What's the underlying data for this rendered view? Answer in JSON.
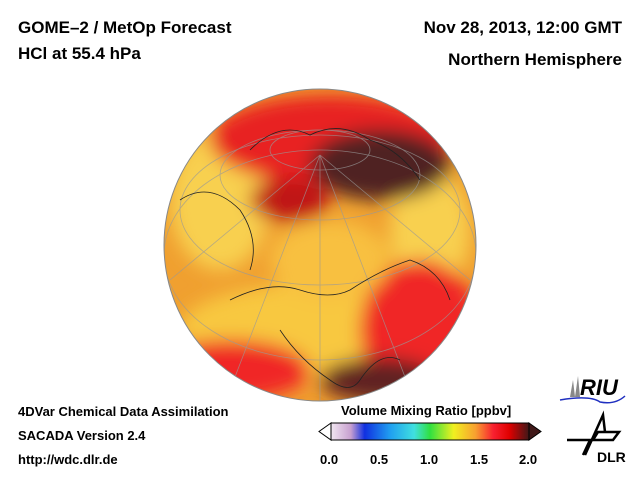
{
  "header": {
    "title": "GOME–2 / MetOp Forecast",
    "subtitle": "HCl at 55.4 hPa",
    "date": "Nov 28, 2013, 12:00 GMT",
    "region": "Northern Hemisphere"
  },
  "footer": {
    "line1": "4DVar Chemical Data Assimilation",
    "line2": "SACADA Version 2.4",
    "line3": "http://wdc.dlr.de"
  },
  "colorbar": {
    "title": "Volume Mixing Ratio [ppbv]",
    "ticks": [
      "0.0",
      "0.5",
      "1.0",
      "1.5",
      "2.0"
    ],
    "range": [
      0,
      2
    ],
    "colors": [
      "#f0e6f0",
      "#c8a0d0",
      "#1030e0",
      "#20a0f0",
      "#40e0e0",
      "#30e040",
      "#f0f020",
      "#f8a030",
      "#f82030",
      "#e00000",
      "#401818"
    ]
  },
  "logos": {
    "riu": "RIU",
    "dlr": "DLR"
  }
}
